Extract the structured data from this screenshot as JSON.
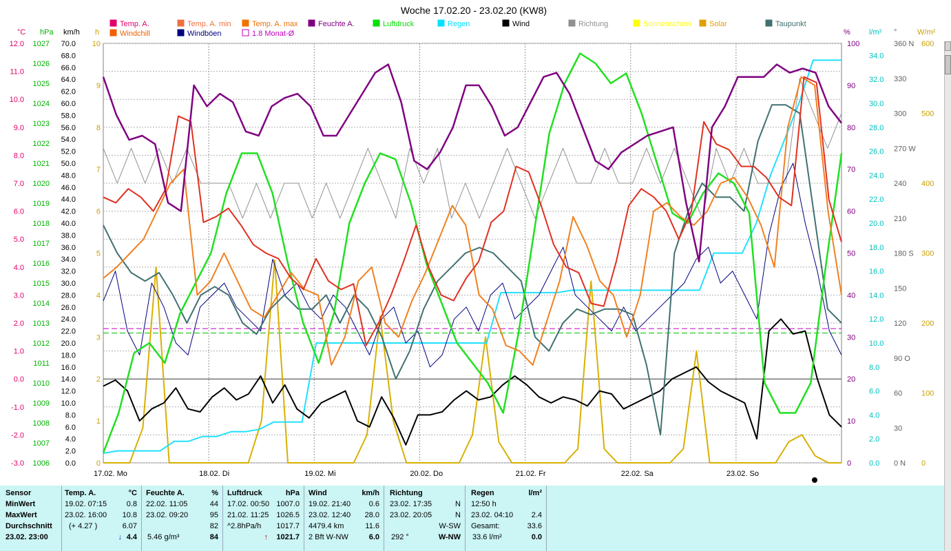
{
  "chart_data": {
    "type": "line",
    "title": "Woche 17.02.20 - 23.02.20 (KW8)",
    "x_axis": {
      "days": [
        "17.02. Mo",
        "18.02. Di",
        "19.02. Mi",
        "20.02. Do",
        "21.02. Fr",
        "22.02. Sa",
        "23.02. So"
      ]
    },
    "axes": {
      "temp": {
        "label": "°C",
        "min": -3,
        "max": 12,
        "ticks": [
          "12.0",
          "11.0",
          "10.0",
          "9.0",
          "8.0",
          "7.0",
          "6.0",
          "5.0",
          "4.0",
          "3.0",
          "2.0",
          "1.0",
          "0.0",
          "-1.0",
          "-2.0",
          "-3.0"
        ],
        "color": "#e0006a"
      },
      "pressure": {
        "label": "hPa",
        "min": 1006,
        "max": 1027,
        "ticks": [
          "1027",
          "1026",
          "1025",
          "1024",
          "1023",
          "1022",
          "1021",
          "1020",
          "1019",
          "1018",
          "1017",
          "1016",
          "1015",
          "1014",
          "1013",
          "1012",
          "1011",
          "1010",
          "1009",
          "1008",
          "1007",
          "1006"
        ],
        "color": "#00b000"
      },
      "wind": {
        "label": "km/h",
        "min": 0,
        "max": 70,
        "ticks": [
          "70.0",
          "68.0",
          "66.0",
          "64.0",
          "62.0",
          "60.0",
          "58.0",
          "56.0",
          "54.0",
          "52.0",
          "50.0",
          "48.0",
          "46.0",
          "44.0",
          "42.0",
          "40.0",
          "38.0",
          "36.0",
          "34.0",
          "32.0",
          "30.0",
          "28.0",
          "26.0",
          "24.0",
          "22.0",
          "20.0",
          "18.0",
          "16.0",
          "14.0",
          "12.0",
          "10.0",
          "8.0",
          "6.0",
          "4.0",
          "2.0",
          "0.0"
        ],
        "color": "#000000"
      },
      "sun": {
        "label": "h",
        "min": 0,
        "max": 10,
        "ticks": [
          "10",
          "9",
          "8",
          "7",
          "6",
          "5",
          "4",
          "3",
          "2",
          "1",
          "0"
        ],
        "color": "#c8a000"
      },
      "humidity": {
        "label": "%",
        "min": 0,
        "max": 100,
        "ticks": [
          "100",
          "90",
          "80",
          "70",
          "60",
          "50",
          "40",
          "30",
          "20",
          "10",
          "0"
        ],
        "color": "#800080"
      },
      "rain": {
        "label": "l/m²",
        "min": 0,
        "max": 35,
        "ticks": [
          "34.0",
          "32.0",
          "30.0",
          "28.0",
          "26.0",
          "24.0",
          "22.0",
          "20.0",
          "18.0",
          "16.0",
          "14.0",
          "12.0",
          "10.0",
          "8.0",
          "6.0",
          "4.0",
          "2.0",
          "0.0"
        ],
        "color": "#00c0c0"
      },
      "direction": {
        "label": "°",
        "min": 0,
        "max": 360,
        "ticks": [
          "360 N",
          "330",
          "300",
          "270 W",
          "240",
          "210",
          "180 S",
          "150",
          "120",
          "90 O",
          "60",
          "30",
          "0 N"
        ],
        "color": "#606060"
      },
      "solar": {
        "label": "W/m²",
        "min": 0,
        "max": 600,
        "ticks": [
          "600",
          "500",
          "400",
          "300",
          "200",
          "100",
          "0"
        ],
        "color": "#c8a000"
      }
    },
    "legend": [
      {
        "name": "Temp. A.",
        "color": "#e0006a"
      },
      {
        "name": "Temp. A. min",
        "color": "#f07040"
      },
      {
        "name": "Temp. A. max",
        "color": "#f07000"
      },
      {
        "name": "Feuchte A.",
        "color": "#800080"
      },
      {
        "name": "Luftdruck",
        "color": "#00e000"
      },
      {
        "name": "Regen",
        "color": "#00e0ff"
      },
      {
        "name": "Wind",
        "color": "#000000"
      },
      {
        "name": "Richtung",
        "color": "#909090"
      },
      {
        "name": "Sonnenschein",
        "color": "#ffff00"
      },
      {
        "name": "Solar",
        "color": "#e0a000"
      },
      {
        "name": "Taupunkt",
        "color": "#407070"
      },
      {
        "name": "Windchill",
        "color": "#f06000"
      },
      {
        "name": "Windböen",
        "color": "#000080"
      },
      {
        "name": "1.8 Monat-Ø",
        "color": "#c000c0"
      }
    ],
    "series": [
      {
        "name": "Temp. A.",
        "axis": "temp",
        "color": "#e03020",
        "values": [
          6.5,
          6.3,
          6.8,
          6.5,
          6.0,
          6.8,
          9.4,
          9.2,
          5.6,
          5.8,
          6.1,
          5.5,
          4.8,
          4.5,
          4.3,
          3.6,
          3.2,
          4.3,
          3.5,
          3.2,
          3.4,
          1.2,
          2.0,
          3.0,
          4.2,
          5.5,
          4.0,
          3.0,
          2.8,
          3.6,
          4.2,
          5.6,
          6.0,
          7.6,
          7.4,
          6.2,
          4.8,
          4.0,
          3.8,
          2.7,
          2.6,
          4.2,
          6.2,
          6.8,
          6.5,
          6.0,
          5.0,
          6.0,
          9.2,
          8.4,
          8.2,
          7.6,
          7.6,
          7.2,
          6.5,
          6.2,
          10.8,
          10.6,
          6.4,
          4.9
        ]
      },
      {
        "name": "Temp. A. max",
        "axis": "temp",
        "color": "#f08020",
        "values": [
          3.6,
          4.0,
          4.5,
          5.0,
          6.0,
          7.0,
          7.5,
          3.0,
          3.5,
          4.5,
          3.5,
          2.5,
          2.2,
          3.0,
          3.8,
          3.2,
          3.0,
          0.5,
          1.5,
          3.5,
          4.0,
          2.0,
          1.5,
          2.8,
          3.8,
          5.0,
          6.2,
          5.5,
          3.0,
          2.5,
          1.2,
          1.0,
          0.5,
          2.0,
          3.5,
          5.8,
          4.8,
          3.5,
          3.0,
          1.5,
          3.0,
          6.0,
          6.3,
          5.8,
          5.5,
          6.0,
          7.0,
          7.2,
          6.5,
          5.5,
          4.0,
          9.0,
          10.8,
          10.5,
          6.0,
          3.0
        ]
      },
      {
        "name": "Feuchte A.",
        "axis": "humidity",
        "color": "#800080",
        "values": [
          92,
          83,
          77,
          78,
          76,
          62,
          60,
          90,
          85,
          88,
          86,
          79,
          78,
          85,
          87,
          88,
          85,
          78,
          78,
          83,
          88,
          93,
          95,
          86,
          72,
          70,
          74,
          80,
          90,
          90,
          85,
          78,
          80,
          86,
          92,
          93,
          88,
          80,
          72,
          70,
          74,
          76,
          78,
          79,
          80,
          62,
          48,
          80,
          85,
          92,
          92,
          92,
          95,
          93,
          94,
          93,
          85,
          81
        ]
      },
      {
        "name": "Luftdruck",
        "axis": "pressure",
        "color": "#20e020",
        "values": [
          1006.5,
          1008.5,
          1011.5,
          1012.0,
          1011.0,
          1013.5,
          1015.0,
          1016.5,
          1019.5,
          1021.5,
          1021.5,
          1019.5,
          1016.0,
          1013.0,
          1011.0,
          1013.5,
          1018.0,
          1020.0,
          1021.5,
          1021.2,
          1019.0,
          1016.0,
          1014.0,
          1012.0,
          1011.0,
          1010.0,
          1008.5,
          1012.5,
          1017.5,
          1022.5,
          1025.0,
          1026.5,
          1026.0,
          1025.0,
          1025.5,
          1023.5,
          1021.0,
          1018.5,
          1018.0,
          1019.5,
          1020.5,
          1020.0,
          1018.5,
          1010.0,
          1008.5,
          1008.5,
          1010.0,
          1016.0,
          1021.5
        ]
      },
      {
        "name": "Regen",
        "axis": "rain",
        "color": "#20e0ff",
        "values": [
          0.8,
          1.0,
          1.0,
          1.0,
          1.0,
          1.8,
          1.8,
          2.2,
          2.2,
          2.6,
          2.6,
          2.8,
          3.4,
          3.4,
          3.4,
          10.0,
          10.0,
          10.0,
          10.0,
          10.0,
          10.0,
          10.0,
          10.0,
          10.0,
          10.0,
          10.0,
          10.0,
          10.0,
          14.2,
          14.2,
          14.2,
          14.2,
          14.2,
          14.4,
          14.4,
          14.4,
          14.4,
          14.4,
          14.4,
          14.4,
          14.4,
          14.4,
          14.4,
          17.5,
          17.5,
          17.5,
          20.0,
          24.0,
          27.0,
          30.0,
          33.6,
          33.6,
          33.6
        ]
      },
      {
        "name": "Wind",
        "axis": "wind",
        "color": "#000000",
        "values": [
          12.8,
          13.8,
          12.0,
          7.0,
          9.0,
          10.0,
          12.5,
          9.0,
          8.5,
          11.0,
          12.5,
          10.5,
          11.5,
          14.5,
          10.0,
          13.0,
          9.0,
          7.5,
          10.0,
          11.0,
          12.0,
          7.0,
          6.0,
          11.0,
          7.5,
          3.0,
          8.0,
          8.0,
          8.5,
          10.5,
          12.0,
          10.5,
          11.0,
          13.0,
          14.5,
          13.0,
          11.0,
          10.0,
          11.0,
          10.5,
          9.5,
          12.0,
          11.5,
          9.0,
          10.0,
          11.0,
          12.0,
          14.0,
          15.0,
          16.0,
          13.5,
          12.0,
          11.0,
          10.0,
          4.0,
          22.0,
          24.0,
          21.5,
          22.0,
          14.0,
          8.0,
          6.0
        ]
      },
      {
        "name": "Windböen",
        "axis": "wind",
        "color": "#000080",
        "values": [
          27,
          32,
          22,
          18,
          30,
          26,
          20,
          18,
          26,
          28,
          30,
          26,
          24,
          22,
          34,
          28,
          30,
          26,
          24,
          28,
          26,
          22,
          18,
          24,
          26,
          20,
          22,
          16,
          18,
          24,
          26,
          22,
          28,
          30,
          24,
          26,
          28,
          32,
          36,
          28,
          26,
          24,
          22,
          26,
          22,
          24,
          26,
          28,
          30,
          34,
          36,
          30,
          32,
          28,
          24,
          38,
          46,
          50,
          40,
          32,
          22,
          18
        ]
      },
      {
        "name": "Richtung",
        "axis": "direction",
        "color": "#909090",
        "values": [
          270,
          240,
          270,
          240,
          270,
          240,
          270,
          240,
          240,
          240,
          210,
          240,
          210,
          240,
          240,
          210,
          240,
          210,
          240,
          270,
          240,
          210,
          270,
          240,
          270,
          210,
          240,
          210,
          240,
          270,
          240,
          210,
          240,
          270,
          240,
          240,
          270,
          240,
          240,
          270,
          240,
          270,
          240,
          210,
          270,
          240,
          270,
          240,
          240,
          240,
          330,
          300,
          270,
          300
        ]
      },
      {
        "name": "Taupunkt",
        "axis": "temp",
        "color": "#407070",
        "values": [
          5.5,
          4.5,
          3.8,
          3.5,
          3.8,
          3.0,
          2.0,
          3.0,
          3.3,
          3.0,
          2.0,
          1.6,
          2.5,
          3.0,
          2.5,
          2.5,
          3.0,
          2.0,
          3.0,
          2.5,
          1.5,
          0.0,
          1.0,
          2.5,
          3.5,
          4.0,
          4.5,
          4.7,
          4.5,
          4.0,
          3.5,
          1.5,
          1.0,
          2.0,
          2.5,
          2.3,
          2.5,
          2.5,
          2.3,
          0.5,
          -2.0,
          4.5,
          6.0,
          7.0,
          6.5,
          6.5,
          6.0,
          8.5,
          9.8,
          9.8,
          9.5,
          6.0,
          2.5,
          2.0
        ]
      },
      {
        "name": "Solar",
        "axis": "solar",
        "color": "#d8b000",
        "values": [
          0,
          0,
          0,
          50,
          280,
          0,
          0,
          0,
          0,
          0,
          0,
          0,
          60,
          290,
          0,
          0,
          0,
          0,
          0,
          0,
          40,
          210,
          60,
          0,
          0,
          0,
          0,
          0,
          40,
          180,
          30,
          0,
          0,
          0,
          0,
          0,
          20,
          260,
          20,
          0,
          0,
          0,
          0,
          0,
          20,
          160,
          0,
          0,
          0,
          0,
          0,
          0,
          30,
          40,
          10,
          0,
          0
        ]
      }
    ]
  },
  "dashed_lines": [
    {
      "name": "1.8 Monat-Ø",
      "axis": "temp",
      "value": 1.8,
      "color": "#c000c0"
    },
    {
      "name": "Luftdruck-Ø",
      "axis": "pressure",
      "value": 1012.5,
      "color": "#00c000"
    }
  ],
  "table": {
    "sensor": {
      "title": "Sensor",
      "min": "MinWert",
      "max": "MaxWert",
      "avg": "Durchschnitt",
      "now": "23.02. 23:00"
    },
    "temp": {
      "title": "Temp. A.",
      "unit": "°C",
      "min_time": "19.02.  07:15",
      "min": "0.8",
      "max_time": "23.02.  16:00",
      "max": "10.8",
      "avg_note": "(+ 4.27 )",
      "avg": "6.07",
      "now": "4.4"
    },
    "humidity": {
      "title": "Feuchte A.",
      "unit": "%",
      "min_time": "22.02.  11:05",
      "min": "44",
      "max_time": "23.02.  09:20",
      "max": "95",
      "avg": "82",
      "abs": "5.46 g/m³",
      "now": "84"
    },
    "pressure": {
      "title": "Luftdruck",
      "unit": "hPa",
      "min_time": "17.02.  00:50",
      "min": "1007.0",
      "max_time": "21.02.  11:25",
      "max": "1026.5",
      "trend": "^2.8hPa/h",
      "avg": "1017.7",
      "now": "1021.7"
    },
    "wind": {
      "title": "Wind",
      "unit": "km/h",
      "min_time": "19.02.  21:40",
      "min": "0.6",
      "max_time": "23.02.  12:40",
      "max": "28.0",
      "distance": "4479.4 km",
      "avg": "11.6",
      "beaufort": "2 Bft W-NW",
      "now": "6.0"
    },
    "direction": {
      "title": "Richtung",
      "min_time": "23.02.  17:35",
      "min": "N",
      "max_time": "23.02.  20:05",
      "max": "N",
      "avg": "W-SW",
      "deg": "292 °",
      "now": "W-NW"
    },
    "rain": {
      "title": "Regen",
      "unit": "l/m²",
      "period": "12:50 h",
      "max_time": "23.02.  04:10",
      "max": "2.4",
      "total_label": "Gesamt:",
      "total": "33.6",
      "sum": "33.6 l/m²",
      "now": "0.0"
    }
  }
}
